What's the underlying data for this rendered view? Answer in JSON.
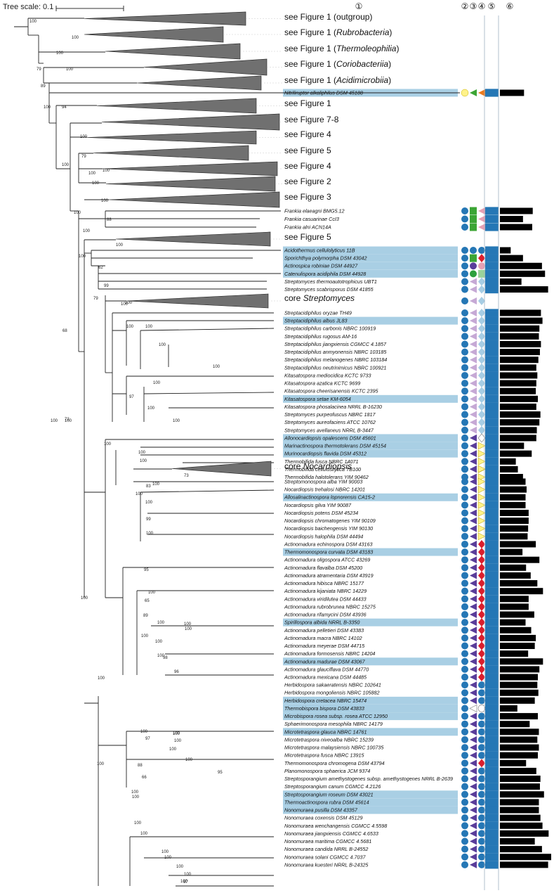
{
  "scale_label": "Tree scale: 0.1",
  "column_headers": [
    "①",
    "②",
    "③",
    "④",
    "⑤",
    "⑥"
  ],
  "bootstrap_labels": [
    "100",
    "100",
    "100",
    "79",
    "100",
    "89",
    "100",
    "94",
    "100",
    "100",
    "79",
    "100",
    "100",
    "100",
    "100",
    "100",
    "88",
    "100",
    "62",
    "99",
    "79",
    "100",
    "68",
    "100",
    "100",
    "100",
    "100",
    "100",
    "97",
    "100",
    "100",
    "100",
    "100",
    "100",
    "73",
    "100",
    "83",
    "100",
    "99",
    "100",
    "100",
    "95",
    "100",
    "65",
    "89",
    "100",
    "100",
    "100",
    "100",
    "100",
    "100",
    "98",
    "96",
    "100",
    "100",
    "100",
    "100",
    "95",
    "100",
    "97",
    "88",
    "66",
    "100",
    "100",
    "100",
    "100",
    "100",
    "100",
    "100",
    "100",
    "100",
    "100",
    "100",
    "100",
    "72",
    "100",
    "100",
    "100",
    "100",
    "100",
    "100",
    "97"
  ],
  "clade_labels": [
    {
      "prefix": "see Figure 1 (",
      "italic": "",
      "suffix": "outgroup)"
    },
    {
      "prefix": "see Figure 1 (",
      "italic": "Rubrobacteria",
      "suffix": ")"
    },
    {
      "prefix": "see Figure 1 (",
      "italic": "Thermoleophilia",
      "suffix": ")"
    },
    {
      "prefix": "see Figure 1 (",
      "italic": "Coriobacteriia",
      "suffix": ")"
    },
    {
      "prefix": "see Figure 1 (",
      "italic": "Acidimicrobiia",
      "suffix": ")"
    },
    {
      "prefix": "see Figure 1",
      "italic": "",
      "suffix": ""
    },
    {
      "prefix": "see Figure 7-8",
      "italic": "",
      "suffix": ""
    },
    {
      "prefix": "see Figure 4",
      "italic": "",
      "suffix": ""
    },
    {
      "prefix": "see Figure 5",
      "italic": "",
      "suffix": ""
    },
    {
      "prefix": "see Figure 4",
      "italic": "",
      "suffix": ""
    },
    {
      "prefix": "see Figure 2",
      "italic": "",
      "suffix": ""
    },
    {
      "prefix": "see Figure 3",
      "italic": "",
      "suffix": ""
    },
    {
      "prefix": "see Figure 5",
      "italic": "",
      "suffix": ""
    },
    {
      "prefix": "core ",
      "italic": "Streptomyces",
      "suffix": ""
    },
    {
      "prefix": "core ",
      "italic": "Nocardiopsis",
      "suffix": ""
    }
  ],
  "taxa": [
    {
      "name": "Nitriliruptor alkaliphilus DSM 45188",
      "highlight": true,
      "m2": "yellow",
      "m3": "green-tri",
      "m4": "orange-tri",
      "m5": true,
      "bar": 0.47
    },
    {
      "name": "Frankia elaeagni BMG5.12",
      "highlight": false,
      "m2": "blue",
      "m3": "green-sq",
      "m4": "pink-tri",
      "m5": true,
      "bar": 0.64
    },
    {
      "name": "Frankia casuarinae CcI3",
      "highlight": false,
      "m2": "blue",
      "m3": "green-sq",
      "m4": "pink-tri",
      "m5": true,
      "bar": 0.45
    },
    {
      "name": "Frankia alni ACN14A",
      "highlight": false,
      "m2": "blue",
      "m3": "green-sq",
      "m4": "pink-tri",
      "m5": true,
      "bar": 0.63
    },
    {
      "name": "Acidothermus cellulolyticus 11B",
      "highlight": true,
      "m2": "blue",
      "m3": "blue",
      "m4": "blue",
      "m5": true,
      "bar": 0.21
    },
    {
      "name": "Sporichthya polymorpha DSM 43042",
      "highlight": true,
      "m2": "blue",
      "m3": "green-sq",
      "m4": "red-dia",
      "m5": true,
      "bar": 0.45
    },
    {
      "name": "Actinospica robiniae DSM 44927",
      "highlight": true,
      "m2": "blue",
      "m3": "purple",
      "m4": "pink-circ",
      "m5": true,
      "bar": 0.82
    },
    {
      "name": "Catenulispora acidiphila DSM 44928",
      "highlight": true,
      "m2": "blue",
      "m3": "green-circ",
      "m4": "green-sq2",
      "m5": true,
      "bar": 0.88
    },
    {
      "name": "Streptomyces thermoautotrophicus UBT1",
      "highlight": false,
      "m2": "blue",
      "m3": "lilac-tri",
      "m4": "ltblue-dia",
      "m5": true,
      "bar": 0.42
    },
    {
      "name": "Streptomyces scabrisporus DSM 41855",
      "highlight": false,
      "m2": "blue",
      "m3": "lilac-tri",
      "m4": "ltblue-dia",
      "m5": true,
      "bar": 0.94
    },
    {
      "name": "Streptacidiphilus oryzae TH49",
      "highlight": false,
      "m2": "blue",
      "m3": "lilac-tri",
      "m4": "ltblue-dia",
      "m5": true,
      "bar": 0.8
    },
    {
      "name": "Streptacidiphilus albus JL83",
      "highlight": true,
      "m2": "blue",
      "m3": "lilac-tri",
      "m4": "ltblue-dia",
      "m5": true,
      "bar": 0.83
    },
    {
      "name": "Streptacidiphilus carbonis NBRC 100919",
      "highlight": false,
      "m2": "blue",
      "m3": "lilac-tri",
      "m4": "ltblue-dia",
      "m5": true,
      "bar": 0.77
    },
    {
      "name": "Streptacidiphilus rugosus AM-16",
      "highlight": false,
      "m2": "blue",
      "m3": "lilac-tri",
      "m4": "ltblue-dia",
      "m5": true,
      "bar": 0.76
    },
    {
      "name": "Streptacidiphilus jiangxiensis CGMCC 4.1857",
      "highlight": false,
      "m2": "blue",
      "m3": "lilac-tri",
      "m4": "ltblue-dia",
      "m5": true,
      "bar": 0.8
    },
    {
      "name": "Streptacidiphilus anmyonensis NBRC 103185",
      "highlight": false,
      "m2": "blue",
      "m3": "lilac-tri",
      "m4": "ltblue-dia",
      "m5": true,
      "bar": 0.78
    },
    {
      "name": "Streptacidiphilus melanogenes NBRC 103184",
      "highlight": false,
      "m2": "blue",
      "m3": "lilac-tri",
      "m4": "ltblue-dia",
      "m5": true,
      "bar": 0.75
    },
    {
      "name": "Streptacidiphilus neutrinimicus NBRC 100921",
      "highlight": false,
      "m2": "blue",
      "m3": "lilac-tri",
      "m4": "ltblue-dia",
      "m5": true,
      "bar": 0.71
    },
    {
      "name": "Kitasatospora mediocidica KCTC 9733",
      "highlight": false,
      "m2": "blue",
      "m3": "lilac-tri",
      "m4": "ltblue-dia",
      "m5": true,
      "bar": 0.73
    },
    {
      "name": "Kitasatospora azatica KCTC 9699",
      "highlight": false,
      "m2": "blue",
      "m3": "lilac-tri",
      "m4": "ltblue-dia",
      "m5": true,
      "bar": 0.71
    },
    {
      "name": "Kitasatospora cheerisanensis KCTC 2395",
      "highlight": false,
      "m2": "blue",
      "m3": "lilac-tri",
      "m4": "ltblue-dia",
      "m5": true,
      "bar": 0.7
    },
    {
      "name": "Kitasatospora setae KM-6054",
      "highlight": true,
      "m2": "blue",
      "m3": "lilac-tri",
      "m4": "ltblue-dia",
      "m5": true,
      "bar": 0.74
    },
    {
      "name": "Kitasatospora phosalacinea NRRL B-16230",
      "highlight": false,
      "m2": "blue",
      "m3": "lilac-tri",
      "m4": "ltblue-dia",
      "m5": true,
      "bar": 0.71
    },
    {
      "name": "Streptomyces purpeofuscus NBRC 1817",
      "highlight": false,
      "m2": "blue",
      "m3": "lilac-tri",
      "m4": "ltblue-dia",
      "m5": true,
      "bar": 0.79
    },
    {
      "name": "Streptomyces aureofaciens ATCC 10762",
      "highlight": false,
      "m2": "blue",
      "m3": "lilac-tri",
      "m4": "ltblue-dia",
      "m5": true,
      "bar": 0.77
    },
    {
      "name": "Streptomyces avellaneus NRRL B-3447",
      "highlight": false,
      "m2": "blue",
      "m3": "lilac-tri",
      "m4": "ltblue-dia",
      "m5": true,
      "bar": 0.72
    },
    {
      "name": "Allonocardiopsis opalescens DSM 45601",
      "highlight": true,
      "m2": "blue",
      "m3": "purple-tri",
      "m4": "white-dia",
      "m5": true,
      "bar": 0.71
    },
    {
      "name": "Marinactinospora thermotolerans DSM 45154",
      "highlight": true,
      "m2": "blue",
      "m3": "purple-tri",
      "m4": "yellow-tri",
      "m5": true,
      "bar": 0.47
    },
    {
      "name": "Murinocardiopsis flavida DSM 45312",
      "highlight": true,
      "m2": "blue",
      "m3": "purple-tri",
      "m4": "yellow-tri",
      "m5": true,
      "bar": 0.62
    },
    {
      "name": "Thermobifida fusca NBRC 14071",
      "highlight": false,
      "m2": "blue",
      "m3": "purple-tri",
      "m4": "yellow-tri",
      "m5": true,
      "bar": 0.31
    },
    {
      "name": "Thermobifida cellulosilytica TB100",
      "highlight": false,
      "m2": "blue",
      "m3": "purple-tri",
      "m4": "yellow-tri",
      "m5": true,
      "bar": 0.35
    },
    {
      "name": "Thermobifida halotolerans YIM 90462",
      "highlight": false,
      "m2": "blue",
      "m3": "purple-tri",
      "m4": "yellow-tri",
      "m5": true,
      "bar": 0.45
    },
    {
      "name": "Streptomonospora alba YIM 90003",
      "highlight": false,
      "m2": "blue",
      "m3": "purple-tri",
      "m4": "yellow-tri",
      "m5": true,
      "bar": 0.5
    },
    {
      "name": "Nocardiopsis trehalosi NBRC 14201",
      "highlight": false,
      "m2": "blue",
      "m3": "purple-tri",
      "m4": "yellow-tri",
      "m5": true,
      "bar": 0.52
    },
    {
      "name": "Allosalinactinospora lopnorensis CA15-2",
      "highlight": true,
      "m2": "blue",
      "m3": "purple-tri",
      "m4": "yellow-tri",
      "m5": true,
      "bar": 0.5
    },
    {
      "name": "Nocardiopsis gilva YIM 90087",
      "highlight": false,
      "m2": "blue",
      "m3": "purple-tri",
      "m4": "yellow-tri",
      "m5": true,
      "bar": 0.5
    },
    {
      "name": "Nocardiopsis potens DSM 45234",
      "highlight": false,
      "m2": "blue",
      "m3": "purple-tri",
      "m4": "yellow-tri",
      "m5": true,
      "bar": 0.56
    },
    {
      "name": "Nocardiopsis chromatogenes YIM 90109",
      "highlight": false,
      "m2": "blue",
      "m3": "purple-tri",
      "m4": "yellow-tri",
      "m5": true,
      "bar": 0.56
    },
    {
      "name": "Nocardiopsis baichengensis YIM 90130",
      "highlight": false,
      "m2": "blue",
      "m3": "purple-tri",
      "m4": "yellow-tri",
      "m5": true,
      "bar": 0.55
    },
    {
      "name": "Nocardiopsis halophila DSM 44494",
      "highlight": false,
      "m2": "blue",
      "m3": "purple-tri",
      "m4": "yellow-tri",
      "m5": true,
      "bar": 0.54
    },
    {
      "name": "Actinomadura echinospora DSM 43163",
      "highlight": false,
      "m2": "blue",
      "m3": "purple-tri",
      "m4": "red-dia",
      "m5": true,
      "bar": 0.7
    },
    {
      "name": "Thermomonospora curvata DSM 43183",
      "highlight": true,
      "m2": "blue",
      "m3": "purple-tri",
      "m4": "red-dia",
      "m5": true,
      "bar": 0.44
    },
    {
      "name": "Actinomadura oligospora ATCC 43269",
      "highlight": false,
      "m2": "blue",
      "m3": "purple-tri",
      "m4": "red-dia",
      "m5": true,
      "bar": 0.77
    },
    {
      "name": "Actinomadura flavalba DSM 45200",
      "highlight": false,
      "m2": "blue",
      "m3": "purple-tri",
      "m4": "red-dia",
      "m5": true,
      "bar": 0.51
    },
    {
      "name": "Actinomadura atramentaria DSM 43919",
      "highlight": false,
      "m2": "blue",
      "m3": "purple-tri",
      "m4": "red-dia",
      "m5": true,
      "bar": 0.6
    },
    {
      "name": "Actinomadura hibisca NBRC 15177",
      "highlight": false,
      "m2": "blue",
      "m3": "purple-tri",
      "m4": "red-dia",
      "m5": true,
      "bar": 0.73
    },
    {
      "name": "Actinomadura kijaniata NBRC 14229",
      "highlight": false,
      "m2": "blue",
      "m3": "purple-tri",
      "m4": "red-dia",
      "m5": true,
      "bar": 0.84
    },
    {
      "name": "Actinomadura viridilutea DSM 44433",
      "highlight": false,
      "m2": "blue",
      "m3": "purple-tri",
      "m4": "red-dia",
      "m5": true,
      "bar": 0.56
    },
    {
      "name": "Actinomadura rubrobrunea NBRC 15275",
      "highlight": false,
      "m2": "blue",
      "m3": "purple-tri",
      "m4": "red-dia",
      "m5": true,
      "bar": 0.56
    },
    {
      "name": "Actinomadura rifamycini DSM 43936",
      "highlight": false,
      "m2": "blue",
      "m3": "purple-tri",
      "m4": "red-dia",
      "m5": true,
      "bar": 0.67
    },
    {
      "name": "Spirillospora albida NRRL B-3350",
      "highlight": true,
      "m2": "blue",
      "m3": "purple-tri",
      "m4": "red-dia",
      "m5": true,
      "bar": 0.5
    },
    {
      "name": "Actinomadura pelletieri DSM 43383",
      "highlight": false,
      "m2": "blue",
      "m3": "purple-tri",
      "m4": "red-dia",
      "m5": true,
      "bar": 0.61
    },
    {
      "name": "Actinomadura macra NBRC 14102",
      "highlight": false,
      "m2": "blue",
      "m3": "purple-tri",
      "m4": "red-dia",
      "m5": true,
      "bar": 0.7
    },
    {
      "name": "Actinomadura meyerae DSM 44715",
      "highlight": false,
      "m2": "blue",
      "m3": "purple-tri",
      "m4": "red-dia",
      "m5": true,
      "bar": 0.68
    },
    {
      "name": "Actinomadura formosensis NBRC 14204",
      "highlight": false,
      "m2": "blue",
      "m3": "purple-tri",
      "m4": "red-dia",
      "m5": true,
      "bar": 0.55
    },
    {
      "name": "Actinomadura madurae DSM 43067",
      "highlight": true,
      "m2": "blue",
      "m3": "purple-tri",
      "m4": "red-dia",
      "m5": true,
      "bar": 0.84
    },
    {
      "name": "Actinomadura glauciflava DSM 44770",
      "highlight": false,
      "m2": "blue",
      "m3": "purple-tri",
      "m4": "red-dia",
      "m5": true,
      "bar": 0.77
    },
    {
      "name": "Actinomadura mexicana DSM 44485",
      "highlight": false,
      "m2": "blue",
      "m3": "purple-tri",
      "m4": "red-dia",
      "m5": true,
      "bar": 0.74
    },
    {
      "name": "Herbidospora sakaeratensis NBRC 102641",
      "highlight": false,
      "m2": "blue",
      "m3": "purple-tri",
      "m4": "blue",
      "m5": true,
      "bar": 0.73
    },
    {
      "name": "Herbidospora mongoliensis NBRC 105882",
      "highlight": false,
      "m2": "blue",
      "m3": "purple-tri",
      "m4": "blue",
      "m5": true,
      "bar": 0.75
    },
    {
      "name": "Herbidospora cretacea NBRC 15474",
      "highlight": true,
      "m2": "blue",
      "m3": "purple-tri",
      "m4": "blue",
      "m5": true,
      "bar": 0.68
    },
    {
      "name": "Thermobispora bispora DSM 43833",
      "highlight": true,
      "m2": "blue",
      "m3": "white-tri",
      "m4": "white-circ",
      "m5": true,
      "bar": 0.34
    },
    {
      "name": "Microbispora rosea subsp. rosea ATCC 12950",
      "highlight": true,
      "m2": "blue",
      "m3": "purple-tri",
      "m4": "blue",
      "m5": true,
      "bar": 0.74
    },
    {
      "name": "Sphaerimonospora mesophila NBRC 14179",
      "highlight": false,
      "m2": "blue",
      "m3": "purple-tri",
      "m4": "blue",
      "m5": true,
      "bar": 0.58
    },
    {
      "name": "Microtetraspora glauca NBRC 14761",
      "highlight": true,
      "m2": "blue",
      "m3": "purple-tri",
      "m4": "blue",
      "m5": true,
      "bar": 0.76
    },
    {
      "name": "Microtetraspora niveoalba NBRC 15239",
      "highlight": false,
      "m2": "blue",
      "m3": "purple-tri",
      "m4": "blue",
      "m5": true,
      "bar": 0.73
    },
    {
      "name": "Microtetraspora malaysiensis NBRC 100735",
      "highlight": false,
      "m2": "blue",
      "m3": "purple-tri",
      "m4": "blue",
      "m5": true,
      "bar": 0.76
    },
    {
      "name": "Microtetraspora fusca NBRC 13915",
      "highlight": false,
      "m2": "blue",
      "m3": "purple-tri",
      "m4": "blue",
      "m5": true,
      "bar": 0.74
    },
    {
      "name": "Thermomonospora chromogena DSM 43794",
      "highlight": false,
      "m2": "blue",
      "m3": "purple-tri",
      "m4": "red-dia",
      "m5": true,
      "bar": 0.51
    },
    {
      "name": "Planomonospora sphaerica JCM 9374",
      "highlight": false,
      "m2": "blue",
      "m3": "purple-tri",
      "m4": "blue",
      "m5": true,
      "bar": 0.71
    },
    {
      "name": "Streptosporangium amethystogenes subsp. amethystogenes NRRL B-2639",
      "highlight": false,
      "m2": "blue",
      "m3": "purple-tri",
      "m4": "blue",
      "m5": true,
      "bar": 0.79
    },
    {
      "name": "Streptosporangium canum CGMCC 4.2126",
      "highlight": false,
      "m2": "blue",
      "m3": "purple-tri",
      "m4": "blue",
      "m5": true,
      "bar": 0.78
    },
    {
      "name": "Streptosporangium roseum DSM 43021",
      "highlight": true,
      "m2": "blue",
      "m3": "purple-tri",
      "m4": "blue",
      "m5": true,
      "bar": 0.86
    },
    {
      "name": "Thermoactinospora rubra DSM 45614",
      "highlight": true,
      "m2": "blue",
      "m3": "purple-tri",
      "m4": "blue",
      "m5": true,
      "bar": 0.76
    },
    {
      "name": "Nonomuraea pusilla DSM 43357",
      "highlight": true,
      "m2": "blue",
      "m3": "purple-tri",
      "m4": "blue",
      "m5": true,
      "bar": 0.76
    },
    {
      "name": "Nonomuraea coxensis DSM 45129",
      "highlight": false,
      "m2": "blue",
      "m3": "purple-tri",
      "m4": "blue",
      "m5": true,
      "bar": 0.79
    },
    {
      "name": "Nonomuraea wenchangensis CGMCC 4.5598",
      "highlight": false,
      "m2": "blue",
      "m3": "purple-tri",
      "m4": "blue",
      "m5": true,
      "bar": 0.83
    },
    {
      "name": "Nonomuraea jiangxiensis CGMCC 4.6533",
      "highlight": false,
      "m2": "blue",
      "m3": "purple-tri",
      "m4": "blue",
      "m5": true,
      "bar": 0.95
    },
    {
      "name": "Nonomuraea maritima CGMCC 4.5681",
      "highlight": false,
      "m2": "blue",
      "m3": "purple-tri",
      "m4": "blue",
      "m5": true,
      "bar": 0.68
    },
    {
      "name": "Nonomuraea candida NRRL B-24552",
      "highlight": false,
      "m2": "blue",
      "m3": "purple-tri",
      "m4": "blue",
      "m5": true,
      "bar": 0.82
    },
    {
      "name": "Nonomuraea solani CGMCC 4.7037",
      "highlight": false,
      "m2": "blue",
      "m3": "purple-tri",
      "m4": "blue",
      "m5": true,
      "bar": 1.0
    },
    {
      "name": "Nonomuraea kuesteri NRRL B-24325",
      "highlight": false,
      "m2": "blue",
      "m3": "purple-tri",
      "m4": "blue",
      "m5": true,
      "bar": 0.94
    }
  ],
  "core_clades": [
    {
      "m2": "blue",
      "m3": "lilac-tri",
      "m4": "ltblue-dia"
    },
    {
      "m2": "blue",
      "m3": "purple-tri",
      "m4": "yellow-tri"
    }
  ],
  "colors": {
    "highlight": "#a9cfe4",
    "collapsed": "#707070",
    "blue": "#2577b5",
    "green": "#3ca535",
    "pink": "#e6a0b4",
    "orange": "#ec7a1d",
    "red": "#dc1e2c",
    "purple": "#5a3d9a",
    "lilac": "#c6a9d5",
    "ltblue": "#a6cde4",
    "yellow": "#fff28a",
    "darkred": "#b43a2a",
    "teal": "#79c2a5"
  }
}
